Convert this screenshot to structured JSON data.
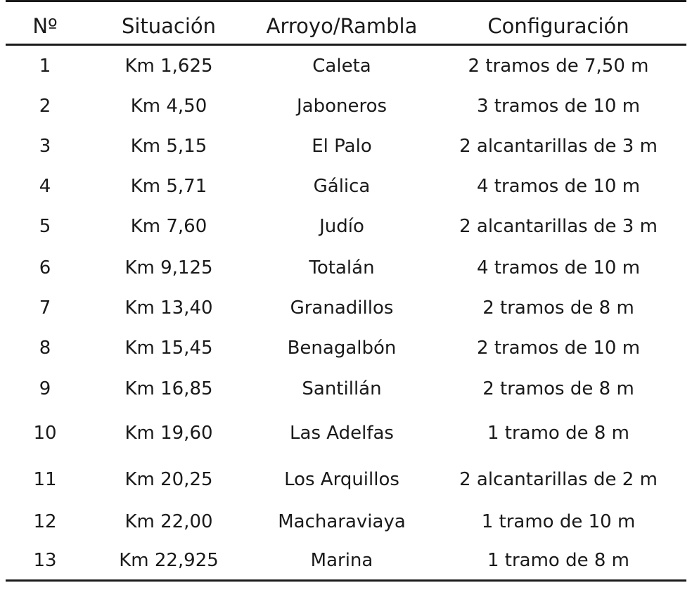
{
  "table": {
    "headers": [
      "Nº",
      "Situación",
      "Arroyo/Rambla",
      "Configuración"
    ],
    "rows": [
      [
        "1",
        "Km 1,625",
        "Caleta",
        "2 tramos de 7,50 m"
      ],
      [
        "2",
        "Km 4,50",
        "Jaboneros",
        "3 tramos de 10 m"
      ],
      [
        "3",
        "Km 5,15",
        "El Palo",
        "2 alcantarillas de 3 m"
      ],
      [
        "4",
        "Km 5,71",
        "Gálica",
        "4 tramos de 10 m"
      ],
      [
        "5",
        "Km 7,60",
        "Judío",
        "2 alcantarillas de 3 m"
      ],
      [
        "6",
        "Km 9,125",
        "Totalán",
        "4 tramos de 10 m"
      ],
      [
        "7",
        "Km 13,40",
        "Granadillos",
        "2 tramos de 8 m"
      ],
      [
        "8",
        "Km 15,45",
        "Benagalbón",
        "2 tramos de 10 m"
      ],
      [
        "9",
        "Km 16,85",
        "Santillán",
        "2 tramos de 8 m"
      ],
      [
        "10",
        "Km 19,60",
        "Las Adelfas",
        "1 tramo de 8 m"
      ],
      [
        "11",
        "Km 20,25",
        "Los Arquillos",
        "2 alcantarillas de 2 m"
      ],
      [
        "12",
        "Km 22,00",
        "Macharaviaya",
        "1 tramo de 10 m"
      ],
      [
        "13",
        "Km 22,925",
        "Marina",
        "1 tramo de 8 m"
      ]
    ]
  }
}
